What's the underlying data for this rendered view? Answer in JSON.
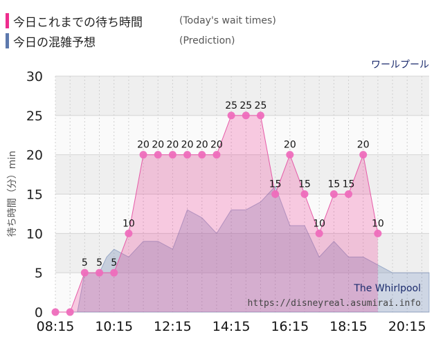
{
  "legend": [
    {
      "label": "今日これまでの待ち時間",
      "note": "(Today's wait times)",
      "color": "#ee2d8e"
    },
    {
      "label": "今日の混雑予想",
      "note": "(Prediction)",
      "color": "#5d79ad"
    }
  ],
  "chart_data": {
    "type": "area",
    "title": "ワールプール",
    "ylabel": "待ち時間（分）min",
    "ylim": [
      0,
      30
    ],
    "yticks": [
      0,
      5,
      10,
      15,
      20,
      25,
      30
    ],
    "xlim": [
      "08:15",
      "21:00"
    ],
    "xticks": [
      "08:15",
      "10:15",
      "12:15",
      "14:15",
      "16:15",
      "18:15",
      "20:15"
    ],
    "grid": true,
    "series": [
      {
        "name": "今日これまでの待ち時間",
        "color": "#ee2d8e",
        "points": [
          [
            "08:15",
            0
          ],
          [
            "08:45",
            0
          ],
          [
            "09:15",
            5
          ],
          [
            "09:45",
            5
          ],
          [
            "10:15",
            5
          ],
          [
            "10:45",
            10
          ],
          [
            "11:15",
            20
          ],
          [
            "11:45",
            20
          ],
          [
            "12:15",
            20
          ],
          [
            "12:45",
            20
          ],
          [
            "13:15",
            20
          ],
          [
            "13:45",
            20
          ],
          [
            "14:15",
            25
          ],
          [
            "14:45",
            25
          ],
          [
            "15:15",
            25
          ],
          [
            "15:45",
            15
          ],
          [
            "16:15",
            20
          ],
          [
            "16:45",
            15
          ],
          [
            "17:15",
            10
          ],
          [
            "17:45",
            15
          ],
          [
            "18:15",
            15
          ],
          [
            "18:45",
            20
          ],
          [
            "19:15",
            10
          ]
        ]
      },
      {
        "name": "今日の混雑予想",
        "color": "#5d79ad",
        "points": [
          [
            "08:15",
            0
          ],
          [
            "08:45",
            0
          ],
          [
            "09:00",
            0
          ],
          [
            "09:15",
            5
          ],
          [
            "09:45",
            5
          ],
          [
            "10:00",
            7
          ],
          [
            "10:15",
            8
          ],
          [
            "10:45",
            7
          ],
          [
            "11:15",
            9
          ],
          [
            "11:45",
            9
          ],
          [
            "12:15",
            8
          ],
          [
            "12:45",
            13
          ],
          [
            "13:15",
            12
          ],
          [
            "13:45",
            10
          ],
          [
            "14:15",
            13
          ],
          [
            "14:45",
            13
          ],
          [
            "15:15",
            14
          ],
          [
            "15:45",
            16
          ],
          [
            "16:15",
            11
          ],
          [
            "16:45",
            11
          ],
          [
            "17:15",
            7
          ],
          [
            "17:45",
            9
          ],
          [
            "18:15",
            7
          ],
          [
            "18:45",
            7
          ],
          [
            "19:15",
            6
          ],
          [
            "19:45",
            5
          ],
          [
            "20:15",
            5
          ],
          [
            "20:45",
            5
          ],
          [
            "21:00",
            5
          ]
        ]
      }
    ]
  },
  "watermark": {
    "name": "The Whirlpool",
    "url": "https://disneyreal.asumirai.info"
  }
}
